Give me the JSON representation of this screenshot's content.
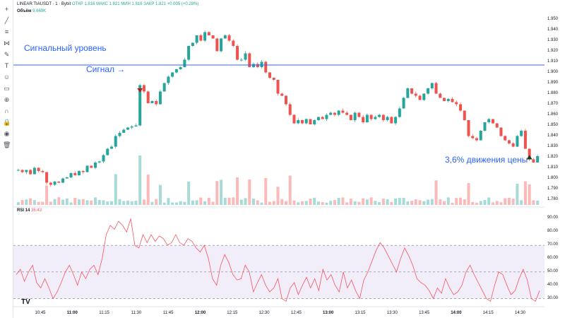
{
  "header": {
    "symbol": "LINEAR:TIAUSDT · 1 · Bybit",
    "ohlc": "ОТКР 1.816  МАКС 1.821  МИН 1.816  ЗАКР 1.821  +0.005 (+0.28%)"
  },
  "volume_label": {
    "title": "Объём",
    "value": "9.669K"
  },
  "rsi_label": {
    "title": "RSI 14",
    "value": "36.43"
  },
  "annotations": {
    "level": "Сигнальный уровень",
    "signal": "Сигнал →",
    "move": "3,6% движения цены"
  },
  "price_axis": [
    "1.950",
    "1.940",
    "1.930",
    "1.920",
    "1.910",
    "1.900",
    "1.890",
    "1.880",
    "1.870",
    "1.860",
    "1.850",
    "1.840",
    "1.830",
    "1.820",
    "1.810",
    "1.800",
    "1.790",
    "1.780"
  ],
  "rsi_axis": [
    "90.00",
    "80.00",
    "70.00",
    "60.00",
    "50.00",
    "40.00",
    "30.00"
  ],
  "time_axis": [
    "10:45",
    "11:00",
    "11:15",
    "11:30",
    "11:45",
    "12:00",
    "12:15",
    "12:30",
    "12:45",
    "13:00",
    "13:15",
    "13:30",
    "13:45",
    "14:00",
    "14:15",
    "14:30"
  ],
  "colors": {
    "up": "#26a69a",
    "down": "#ef5350",
    "level": "#2962ff",
    "rsi": "#f7525f",
    "rsi_band": "#7e57c2"
  },
  "toolbar_icons": [
    "crosshair-icon",
    "trendline-icon",
    "fib-icon",
    "pattern-icon",
    "brush-icon",
    "text-icon",
    "emoji-icon",
    "ruler-icon",
    "zoom-icon",
    "magnet-icon",
    "lock-icon",
    "eye-icon",
    "trash-icon"
  ],
  "chart_data": {
    "type": "candlestick",
    "price_close_series": [
      1.808,
      1.806,
      1.808,
      1.804,
      1.81,
      1.807,
      1.806,
      1.796,
      1.794,
      1.797,
      1.796,
      1.8,
      1.801,
      1.805,
      1.803,
      1.807,
      1.806,
      1.812,
      1.81,
      1.815,
      1.816,
      1.822,
      1.828,
      1.83,
      1.84,
      1.843,
      1.846,
      1.848,
      1.849,
      1.85,
      1.888,
      1.882,
      1.871,
      1.873,
      1.87,
      1.882,
      1.89,
      1.896,
      1.9,
      1.903,
      1.905,
      1.912,
      1.925,
      1.928,
      1.935,
      1.93,
      1.938,
      1.935,
      1.932,
      1.92,
      1.932,
      1.935,
      1.93,
      1.925,
      1.912,
      1.912,
      1.918,
      1.905,
      1.908,
      1.905,
      1.91,
      1.9,
      1.895,
      1.893,
      1.88,
      1.878,
      1.87,
      1.86,
      1.852,
      1.855,
      1.852,
      1.856,
      1.851,
      1.855,
      1.858,
      1.856,
      1.86,
      1.862,
      1.86,
      1.864,
      1.862,
      1.86,
      1.855,
      1.862,
      1.858,
      1.853,
      1.86,
      1.856,
      1.858,
      1.86,
      1.855,
      1.858,
      1.852,
      1.858,
      1.866,
      1.876,
      1.885,
      1.88,
      1.878,
      1.874,
      1.88,
      1.885,
      1.89,
      1.88,
      1.876,
      1.873,
      1.875,
      1.872,
      1.87,
      1.864,
      1.855,
      1.84,
      1.838,
      1.836,
      1.845,
      1.853,
      1.856,
      1.852,
      1.848,
      1.84,
      1.836,
      1.833,
      1.83,
      1.84,
      1.845,
      1.828,
      1.818,
      1.815,
      1.821
    ],
    "signal_level": 1.907,
    "rsi_values": [
      48,
      52,
      43,
      50,
      55,
      42,
      38,
      45,
      38,
      30,
      35,
      42,
      50,
      55,
      48,
      40,
      50,
      45,
      52,
      55,
      48,
      60,
      78,
      85,
      82,
      88,
      85,
      80,
      90,
      70,
      68,
      78,
      72,
      78,
      73,
      77,
      75,
      70,
      72,
      78,
      72,
      70,
      75,
      73,
      68,
      65,
      70,
      60,
      45,
      40,
      55,
      63,
      57,
      48,
      44,
      45,
      55,
      50,
      35,
      42,
      48,
      40,
      35,
      38,
      45,
      30,
      28,
      38,
      42,
      33,
      40,
      46,
      38,
      45,
      36,
      52,
      44,
      48,
      40,
      35,
      50,
      38,
      44,
      36,
      30,
      44,
      50,
      58,
      66,
      72,
      68,
      62,
      56,
      50,
      60,
      68,
      62,
      55,
      45,
      42,
      40,
      36,
      30,
      38,
      34,
      45,
      38,
      33,
      35,
      40,
      50,
      55,
      48,
      42,
      36,
      30,
      28,
      40,
      50,
      48,
      40,
      33,
      36,
      45,
      52,
      44,
      30,
      28,
      36
    ],
    "rsi_levels": [
      70,
      50,
      30
    ],
    "ylim_price": [
      1.775,
      1.955
    ],
    "ylim_rsi": [
      25,
      95
    ]
  }
}
